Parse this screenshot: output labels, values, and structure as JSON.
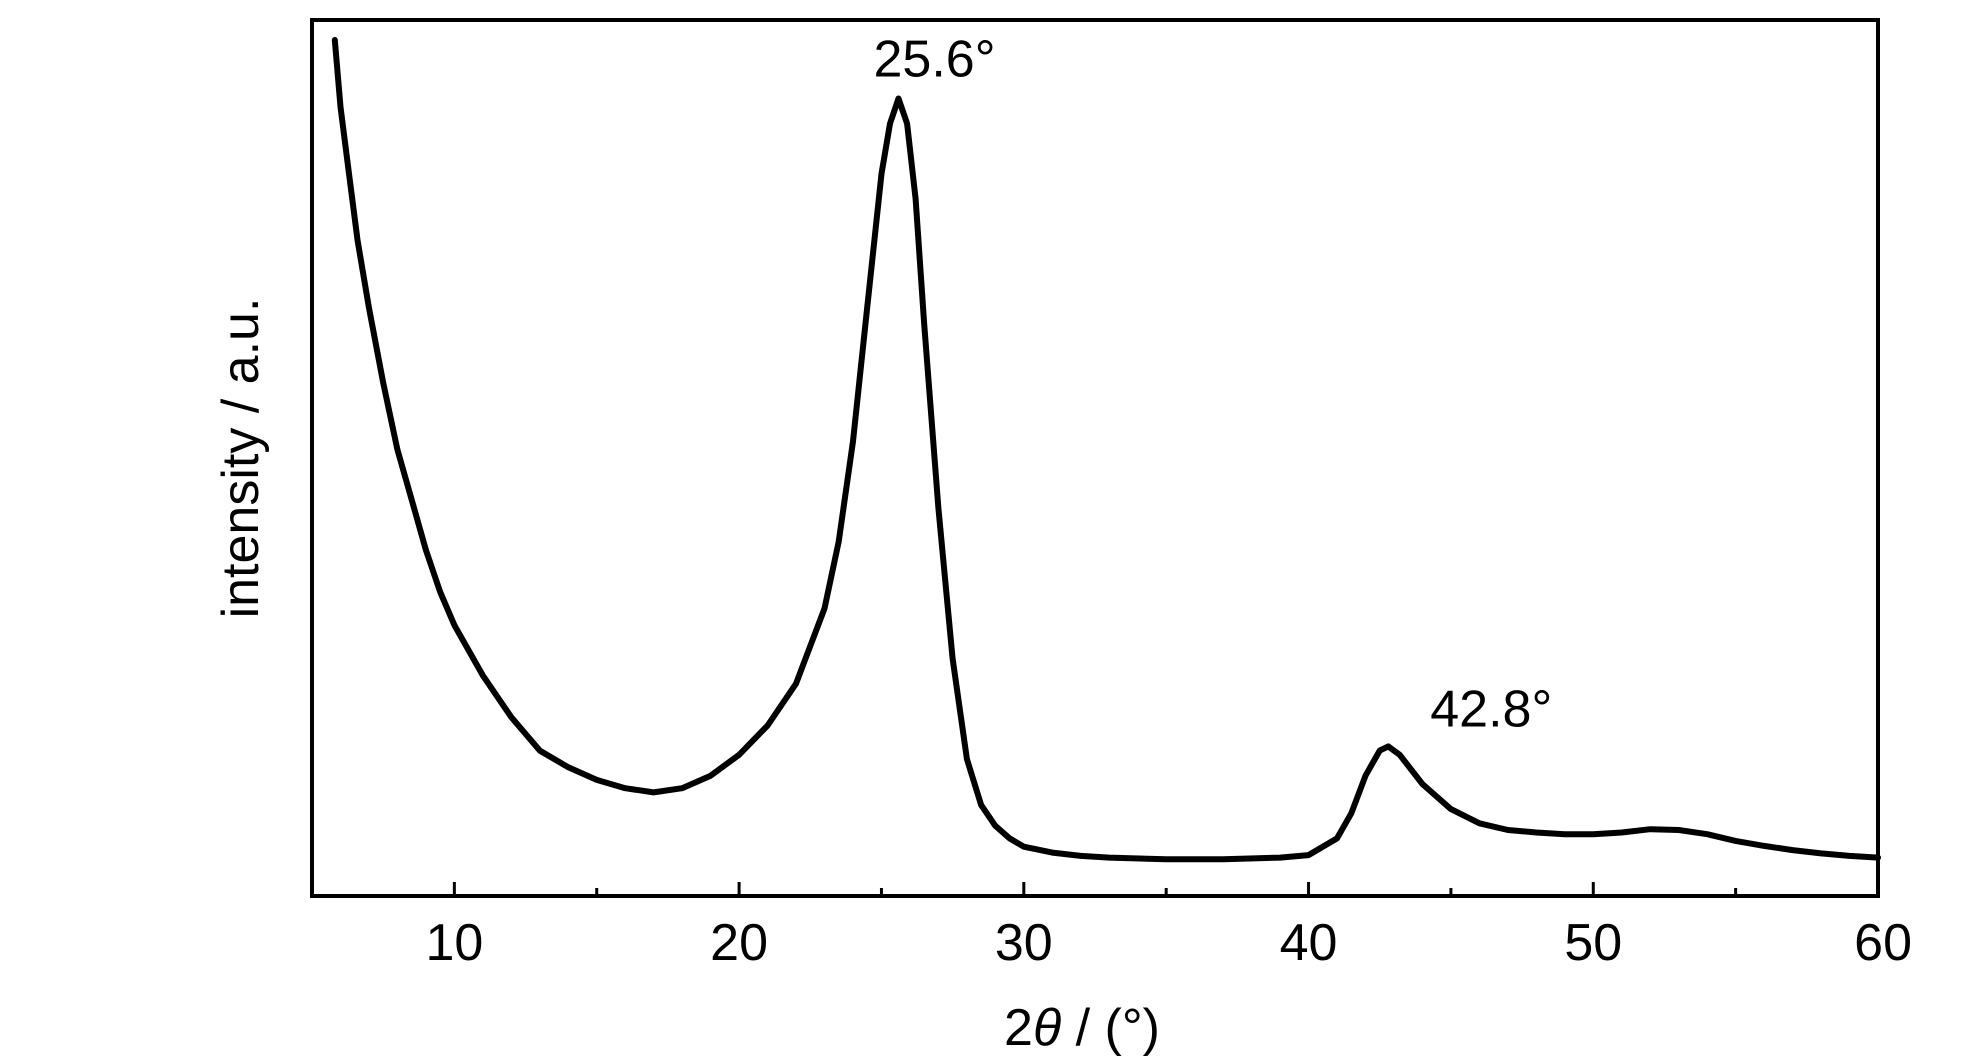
{
  "chart_data": {
    "type": "line",
    "title": "",
    "xlabel_prefix": "2",
    "xlabel_symbol": "θ",
    "xlabel_suffix": " / (°)",
    "ylabel": "intensity / a.u.",
    "xlim": [
      5,
      60
    ],
    "ylim": [
      0,
      1
    ],
    "y_ticks_shown": false,
    "grid": false,
    "x_ticks": [
      10,
      20,
      30,
      40,
      50,
      60
    ],
    "x_minor_ticks": [
      15,
      25,
      35,
      45,
      55
    ],
    "series": [
      {
        "x": [
          5.8,
          6.0,
          6.3,
          6.6,
          7.0,
          7.5,
          8.0,
          8.5,
          9.0,
          9.5,
          10.0,
          11.0,
          12.0,
          13.0,
          14.0,
          15.0,
          16.0,
          17.0,
          18.0,
          19.0,
          20.0,
          21.0,
          22.0,
          23.0,
          23.5,
          24.0,
          24.5,
          25.0,
          25.3,
          25.6,
          25.9,
          26.2,
          26.5,
          27.0,
          27.5,
          28.0,
          28.5,
          29.0,
          29.5,
          30.0,
          31.0,
          32.0,
          33.0,
          35.0,
          37.0,
          39.0,
          40.0,
          41.0,
          41.5,
          42.0,
          42.5,
          42.8,
          43.2,
          44.0,
          45.0,
          46.0,
          47.0,
          48.0,
          49.0,
          50.0,
          51.0,
          52.0,
          53.0,
          54.0,
          55.0,
          56.0,
          57.0,
          58.0,
          59.0,
          60.0
        ],
        "y": [
          1.0,
          0.92,
          0.84,
          0.76,
          0.68,
          0.59,
          0.51,
          0.45,
          0.39,
          0.34,
          0.3,
          0.24,
          0.19,
          0.15,
          0.13,
          0.115,
          0.105,
          0.1,
          0.105,
          0.12,
          0.145,
          0.18,
          0.23,
          0.32,
          0.4,
          0.52,
          0.68,
          0.84,
          0.9,
          0.93,
          0.9,
          0.81,
          0.66,
          0.44,
          0.26,
          0.14,
          0.085,
          0.06,
          0.045,
          0.035,
          0.028,
          0.024,
          0.022,
          0.02,
          0.02,
          0.022,
          0.025,
          0.045,
          0.075,
          0.12,
          0.15,
          0.155,
          0.145,
          0.11,
          0.08,
          0.063,
          0.055,
          0.052,
          0.05,
          0.05,
          0.052,
          0.056,
          0.055,
          0.05,
          0.042,
          0.036,
          0.031,
          0.027,
          0.024,
          0.022
        ]
      }
    ],
    "annotations": [
      {
        "text": "25.6°",
        "x": 25.6,
        "y": 0.93
      },
      {
        "text": "42.8°",
        "x": 42.8,
        "y": 0.155
      }
    ]
  }
}
